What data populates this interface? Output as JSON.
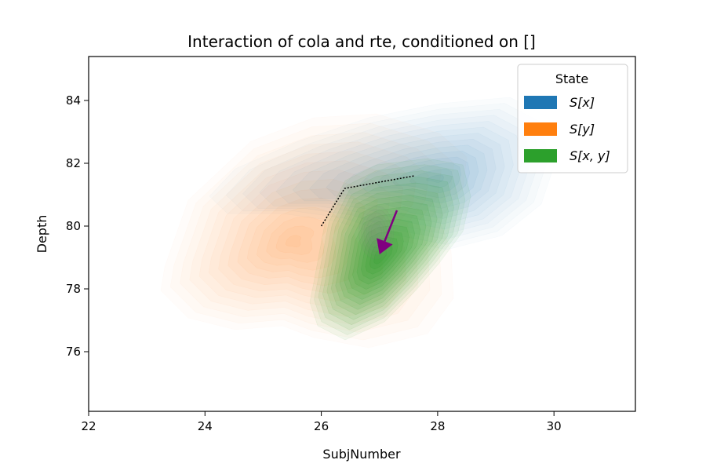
{
  "chart_data": {
    "type": "density_contour",
    "title": "Interaction of cola and rte, conditioned on []",
    "xlabel": "SubjNumber",
    "ylabel": "Depth",
    "xlim": [
      22,
      31.4
    ],
    "ylim": [
      74.1,
      85.4
    ],
    "xticks": [
      "22",
      "24",
      "26",
      "28",
      "30"
    ],
    "yticks": [
      "76",
      "78",
      "80",
      "82",
      "84"
    ],
    "grid": false,
    "legend": {
      "title": "State",
      "placement": "top-right",
      "entries": [
        {
          "label": "S[x]",
          "color": "#1f77b4"
        },
        {
          "label": "S[y]",
          "color": "#ff7f0e"
        },
        {
          "label": "S[x, y]",
          "color": "#2ca02c"
        }
      ]
    },
    "series": [
      {
        "name": "S[x]",
        "color": "#1f77b4",
        "center": [
          28.0,
          81.5
        ]
      },
      {
        "name": "S[y]",
        "color": "#ff7f0e",
        "center": [
          25.5,
          79.5
        ]
      },
      {
        "name": "S[x, y]",
        "color": "#2ca02c",
        "center": [
          27.0,
          79.0
        ]
      }
    ],
    "dotted_path": [
      [
        26.0,
        80.0
      ],
      [
        26.4,
        81.2
      ],
      [
        27.6,
        81.6
      ]
    ],
    "arrow": {
      "from": [
        27.3,
        80.5
      ],
      "to": [
        27.0,
        79.1
      ],
      "color": "#800080"
    }
  }
}
